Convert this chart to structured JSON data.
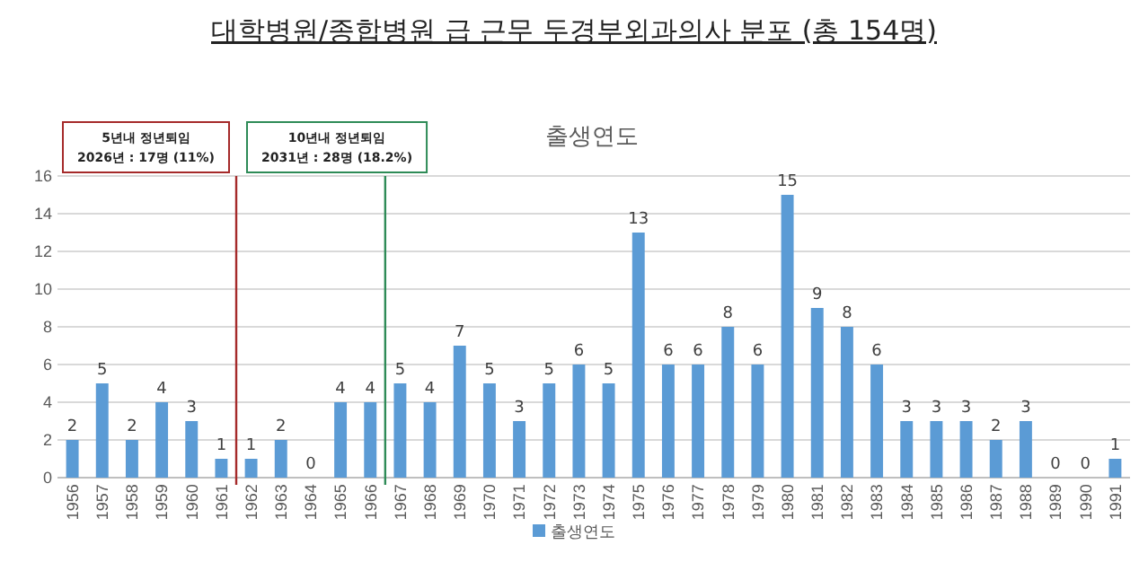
{
  "chart_data": {
    "type": "bar",
    "title": "대학병원/종합병원 급 근무 두경부외과의사 분포 (총 154명)",
    "subtitle": "출생연도",
    "x": [
      1956,
      1957,
      1958,
      1959,
      1960,
      1961,
      1962,
      1963,
      1964,
      1965,
      1966,
      1967,
      1968,
      1969,
      1970,
      1971,
      1972,
      1973,
      1974,
      1975,
      1976,
      1977,
      1978,
      1979,
      1980,
      1981,
      1982,
      1983,
      1984,
      1985,
      1986,
      1987,
      1988,
      1989,
      1990,
      1991
    ],
    "xlim": [
      1955.5,
      1991.5
    ],
    "xticks": [
      1956,
      1957,
      1958,
      1959,
      1960,
      1961,
      1962,
      1963,
      1964,
      1965,
      1966,
      1967,
      1968,
      1969,
      1970,
      1971,
      1972,
      1973,
      1974,
      1975,
      1976,
      1977,
      1978,
      1979,
      1980,
      1981,
      1982,
      1983,
      1984,
      1985,
      1986,
      1987,
      1988,
      1989,
      1990,
      1991
    ],
    "series": [
      {
        "name": "출생연도",
        "color": "#5b9bd5",
        "values": [
          2,
          5,
          2,
          4,
          3,
          1,
          1,
          2,
          0,
          4,
          4,
          5,
          4,
          7,
          5,
          3,
          5,
          6,
          5,
          13,
          6,
          6,
          8,
          6,
          15,
          9,
          8,
          6,
          3,
          3,
          3,
          2,
          3,
          0,
          0,
          1
        ]
      }
    ],
    "ylim": [
      0,
      16
    ],
    "yticks": [
      0,
      2,
      4,
      6,
      8,
      10,
      12,
      14,
      16
    ],
    "grid": "y",
    "data_labels": true,
    "legend": "bottom",
    "annotations": [
      "5년내 정년퇴임\n2026년 : 17명 (11%)",
      "10년내 정년퇴임\n2031년 : 28명 (18.2%)"
    ],
    "ref_lines": [
      {
        "axis": "x",
        "value": 1961.5,
        "color": "#a52a2a"
      },
      {
        "axis": "x",
        "value": 1966.5,
        "color": "#2e8b57"
      }
    ]
  }
}
